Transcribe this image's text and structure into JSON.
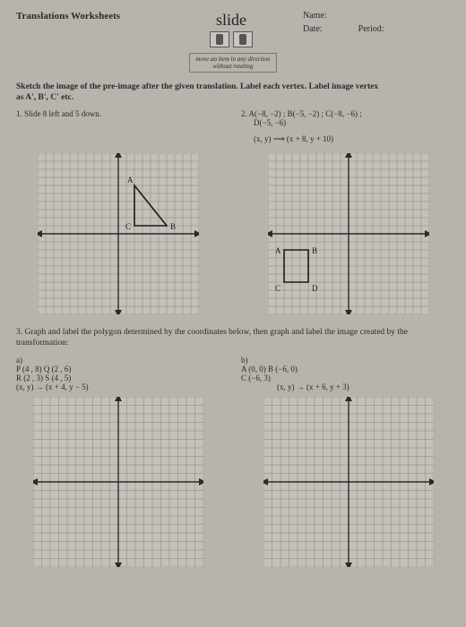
{
  "header": {
    "title": "Translations Worksheets",
    "slide_label": "slide",
    "caption_line1": "move an item in any direction",
    "caption_line2": "without rotating",
    "name_label": "Name:",
    "date_label": "Date:",
    "period_label": "Period:"
  },
  "instructions": {
    "line1": "Sketch the image of the pre-image after the given translation. Label each vertex. Label image vertex",
    "line2": "as A', B', C' etc."
  },
  "problem1": {
    "label": "1.  Slide 8 left and 5 down.",
    "grid": {
      "size": 180,
      "cells": 20,
      "axis_color": "#2a2a2a",
      "grid_color": "#7a766f",
      "bg": "#c5c1ba",
      "triangle": {
        "A": [
          2,
          6
        ],
        "B": [
          6,
          1
        ],
        "C": [
          2,
          1
        ],
        "A_label": "A",
        "B_label": "B",
        "C_label": "C",
        "stroke": "#1a1a1a"
      }
    }
  },
  "problem2": {
    "label": "2.  A(−8, −2) ; B(−5, −2) ; C(−8, −6) ;",
    "label2": "D(−5, −6)",
    "rule": "(x, y) ⟶ (x + 8, y + 10)",
    "grid": {
      "size": 180,
      "cells": 20,
      "axis_color": "#2a2a2a",
      "grid_color": "#7a766f",
      "bg": "#c5c1ba",
      "rect": {
        "A": [
          -8,
          -2
        ],
        "B": [
          -5,
          -2
        ],
        "C": [
          -8,
          -6
        ],
        "D": [
          -5,
          -6
        ],
        "A_label": "A",
        "B_label": "B",
        "C_label": "C",
        "D_label": "D",
        "stroke": "#1a1a1a"
      }
    }
  },
  "section3": {
    "text": "3. Graph and label the polygon determined by the coordinates below, then graph and label the image created by the transformation:"
  },
  "problem3a": {
    "label": "a)",
    "line1": "P (4 , 8)  Q (2 , 6)",
    "line2": "R (2 , 3)  S (4 , 5)",
    "rule": "(x, y) → (x + 4,  y − 5)"
  },
  "problem3b": {
    "label": "b)",
    "line1": "A (0, 0)   B (−6, 0)",
    "line2": "C (−6, 3)",
    "rule": "(x, y) → (x + 6, y + 3)"
  },
  "blank_grid": {
    "size": 190,
    "cells": 20,
    "axis_color": "#2a2a2a",
    "grid_color": "#7a766f",
    "bg": "#c5c1ba"
  }
}
